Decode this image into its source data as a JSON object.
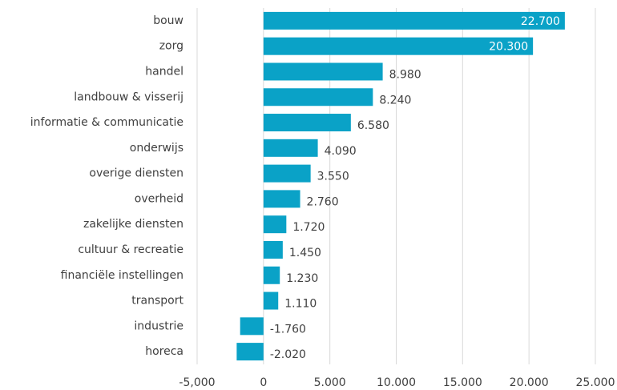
{
  "chart_data": {
    "type": "bar",
    "categories": [
      "bouw",
      "zorg",
      "handel",
      "landbouw & visserij",
      "informatie & communicatie",
      "onderwijs",
      "overige diensten",
      "overheid",
      "zakelijke diensten",
      "cultuur & recreatie",
      "financiële instellingen",
      "transport",
      "industrie",
      "horeca"
    ],
    "values": [
      22700,
      20300,
      8980,
      8240,
      6580,
      4090,
      3550,
      2760,
      1720,
      1450,
      1230,
      1110,
      -1760,
      -2020
    ],
    "value_labels": [
      "22.700",
      "20.300",
      "8.980",
      "8.240",
      "6.580",
      "4.090",
      "3.550",
      "2.760",
      "1.720",
      "1.450",
      "1.230",
      "1.110",
      "-1.760",
      "-2.020"
    ],
    "color": "#0aa2c7",
    "xlim": [
      -5000,
      25000
    ],
    "xticks": [
      {
        "value": -5000,
        "label": "-5,000"
      },
      0,
      {
        "value": 5000,
        "label": "5.000"
      },
      {
        "value": 10000,
        "label": "10.000"
      },
      {
        "value": 15000,
        "label": "15.000"
      },
      {
        "value": 20000,
        "label": "20.000"
      },
      {
        "value": 25000,
        "label": "25.000"
      }
    ],
    "grid": true
  }
}
